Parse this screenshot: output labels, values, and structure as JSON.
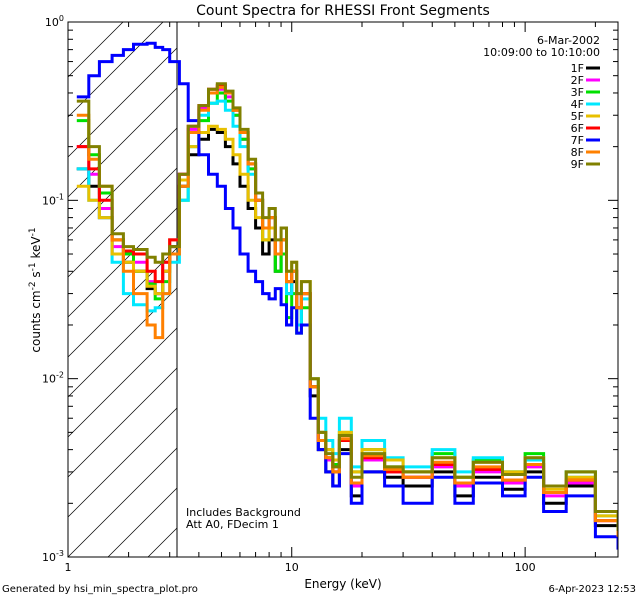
{
  "chart_data": {
    "type": "line",
    "title": "Count Spectra for RHESSI Front Segments",
    "xlabel": "Energy (keV)",
    "ylabel": "counts cm^-2 s^-1 keV^-1",
    "xscale": "log",
    "yscale": "log",
    "xlim": [
      1.1,
      250
    ],
    "ylim": [
      0.001,
      1.0
    ],
    "x_tick_labels": [
      "1",
      "10",
      "100"
    ],
    "y_tick_labels": [
      "10^-3",
      "10^-2",
      "10^-1",
      "10^0"
    ],
    "date": "6-Mar-2002",
    "time_range": "10:09:00 to 10:10:00",
    "annotations": [
      "Includes Background",
      "Att A0, FDecim 1"
    ],
    "shaded_region": {
      "x_max": 3.0,
      "label": "hatched low-energy region"
    },
    "series": [
      {
        "name": "1F",
        "color": "#000000",
        "x": [
          1.2,
          1.35,
          1.5,
          1.7,
          1.9,
          2.1,
          2.4,
          2.6,
          2.8,
          3.0,
          3.3,
          3.6,
          4.0,
          4.4,
          4.8,
          5.2,
          5.6,
          6.0,
          6.5,
          7.0,
          7.5,
          8.0,
          8.5,
          9.0,
          9.5,
          10,
          10.5,
          11,
          12,
          13,
          14,
          15,
          16,
          18,
          20,
          25,
          30,
          40,
          50,
          60,
          80,
          100,
          120,
          150,
          200,
          250
        ],
        "y": [
          0.15,
          0.12,
          0.08,
          0.05,
          0.045,
          0.04,
          0.032,
          0.03,
          0.04,
          0.055,
          0.12,
          0.18,
          0.22,
          0.25,
          0.24,
          0.2,
          0.16,
          0.12,
          0.09,
          0.07,
          0.05,
          0.06,
          0.04,
          0.05,
          0.03,
          0.035,
          0.02,
          0.03,
          0.008,
          0.004,
          0.003,
          0.0025,
          0.004,
          0.0022,
          0.003,
          0.0028,
          0.0025,
          0.003,
          0.0022,
          0.0028,
          0.0024,
          0.003,
          0.002,
          0.0025,
          0.0015,
          0.0012
        ]
      },
      {
        "name": "2F",
        "color": "#ff00ff",
        "x": [
          1.2,
          1.35,
          1.5,
          1.7,
          1.9,
          2.1,
          2.4,
          2.6,
          2.8,
          3.0,
          3.3,
          3.6,
          4.0,
          4.4,
          4.8,
          5.2,
          5.6,
          6.0,
          6.5,
          7.0,
          7.5,
          8.0,
          8.5,
          9.0,
          9.5,
          10,
          10.5,
          11,
          12,
          13,
          14,
          15,
          16,
          18,
          20,
          25,
          30,
          40,
          50,
          60,
          80,
          100,
          120,
          150,
          200,
          250
        ],
        "y": [
          0.2,
          0.14,
          0.09,
          0.055,
          0.05,
          0.045,
          0.035,
          0.03,
          0.045,
          0.06,
          0.14,
          0.25,
          0.33,
          0.4,
          0.42,
          0.38,
          0.3,
          0.22,
          0.15,
          0.1,
          0.07,
          0.08,
          0.05,
          0.06,
          0.035,
          0.04,
          0.025,
          0.03,
          0.009,
          0.0045,
          0.0035,
          0.003,
          0.0045,
          0.0025,
          0.0035,
          0.003,
          0.0028,
          0.0032,
          0.0025,
          0.003,
          0.0026,
          0.0032,
          0.0022,
          0.0026,
          0.0016,
          0.0013
        ]
      },
      {
        "name": "3F",
        "color": "#00e000",
        "x": [
          1.2,
          1.35,
          1.5,
          1.7,
          1.9,
          2.1,
          2.4,
          2.6,
          2.8,
          3.0,
          3.3,
          3.6,
          4.0,
          4.4,
          4.8,
          5.2,
          5.6,
          6.0,
          6.5,
          7.0,
          7.5,
          8.0,
          8.5,
          9.0,
          9.5,
          10,
          10.5,
          11,
          12,
          13,
          14,
          15,
          16,
          18,
          20,
          25,
          30,
          40,
          50,
          60,
          80,
          100,
          120,
          150,
          200,
          250
        ],
        "y": [
          0.28,
          0.18,
          0.11,
          0.06,
          0.05,
          0.04,
          0.034,
          0.028,
          0.035,
          0.05,
          0.1,
          0.2,
          0.28,
          0.35,
          0.4,
          0.36,
          0.3,
          0.22,
          0.15,
          0.1,
          0.06,
          0.07,
          0.04,
          0.05,
          0.022,
          0.03,
          0.018,
          0.025,
          0.009,
          0.005,
          0.004,
          0.0033,
          0.005,
          0.003,
          0.004,
          0.0032,
          0.003,
          0.0038,
          0.0028,
          0.0035,
          0.003,
          0.0038,
          0.0025,
          0.003,
          0.0018,
          0.0014
        ]
      },
      {
        "name": "4F",
        "color": "#00e8ff",
        "x": [
          1.2,
          1.35,
          1.5,
          1.7,
          1.9,
          2.1,
          2.4,
          2.6,
          2.8,
          3.0,
          3.3,
          3.6,
          4.0,
          4.4,
          4.8,
          5.2,
          5.6,
          6.0,
          6.5,
          7.0,
          7.5,
          8.0,
          8.5,
          9.0,
          9.5,
          10,
          10.5,
          11,
          12,
          13,
          14,
          15,
          16,
          18,
          20,
          25,
          30,
          40,
          50,
          60,
          80,
          100,
          120,
          150,
          200,
          250
        ],
        "y": [
          0.15,
          0.1,
          0.08,
          0.045,
          0.03,
          0.026,
          0.024,
          0.025,
          0.03,
          0.045,
          0.1,
          0.2,
          0.3,
          0.35,
          0.36,
          0.32,
          0.26,
          0.2,
          0.14,
          0.1,
          0.07,
          0.08,
          0.05,
          0.06,
          0.03,
          0.04,
          0.02,
          0.028,
          0.01,
          0.006,
          0.0045,
          0.0038,
          0.006,
          0.0032,
          0.0045,
          0.0036,
          0.0032,
          0.004,
          0.003,
          0.0036,
          0.003,
          0.0035,
          0.0025,
          0.0028,
          0.0017,
          0.0013
        ]
      },
      {
        "name": "5F",
        "color": "#e8c000",
        "x": [
          1.2,
          1.35,
          1.5,
          1.7,
          1.9,
          2.1,
          2.4,
          2.6,
          2.8,
          3.0,
          3.3,
          3.6,
          4.0,
          4.4,
          4.8,
          5.2,
          5.6,
          6.0,
          6.5,
          7.0,
          7.5,
          8.0,
          8.5,
          9.0,
          9.5,
          10,
          10.5,
          11,
          12,
          13,
          14,
          15,
          16,
          18,
          20,
          25,
          30,
          40,
          50,
          60,
          80,
          100,
          120,
          150,
          200,
          250
        ],
        "y": [
          0.12,
          0.1,
          0.08,
          0.05,
          0.045,
          0.04,
          0.033,
          0.03,
          0.04,
          0.06,
          0.13,
          0.2,
          0.24,
          0.26,
          0.25,
          0.22,
          0.18,
          0.14,
          0.1,
          0.08,
          0.06,
          0.07,
          0.05,
          0.06,
          0.04,
          0.045,
          0.03,
          0.035,
          0.01,
          0.005,
          0.004,
          0.0035,
          0.005,
          0.003,
          0.004,
          0.0035,
          0.003,
          0.0036,
          0.0028,
          0.0034,
          0.003,
          0.0036,
          0.0024,
          0.0028,
          0.0017,
          0.0013
        ]
      },
      {
        "name": "6F",
        "color": "#ff0000",
        "x": [
          1.2,
          1.35,
          1.5,
          1.7,
          1.9,
          2.1,
          2.4,
          2.6,
          2.8,
          3.0,
          3.3,
          3.6,
          4.0,
          4.4,
          4.8,
          5.2,
          5.6,
          6.0,
          6.5,
          7.0,
          7.5,
          8.0,
          8.5,
          9.0,
          9.5,
          10,
          10.5,
          11,
          12,
          13,
          14,
          15,
          16,
          18,
          20,
          25,
          30,
          40,
          50,
          60,
          80,
          100,
          120,
          150,
          200,
          250
        ],
        "y": [
          0.2,
          0.15,
          0.1,
          0.06,
          0.052,
          0.05,
          0.04,
          0.035,
          0.045,
          0.06,
          0.14,
          0.26,
          0.34,
          0.42,
          0.44,
          0.4,
          0.32,
          0.24,
          0.16,
          0.1,
          0.07,
          0.08,
          0.05,
          0.06,
          0.035,
          0.04,
          0.025,
          0.03,
          0.009,
          0.0045,
          0.0036,
          0.003,
          0.0045,
          0.0026,
          0.0036,
          0.003,
          0.0028,
          0.0033,
          0.0026,
          0.0031,
          0.0027,
          0.0033,
          0.0023,
          0.0027,
          0.0016,
          0.0013
        ]
      },
      {
        "name": "7F",
        "color": "#0000ff",
        "x": [
          1.2,
          1.35,
          1.5,
          1.7,
          1.9,
          2.1,
          2.4,
          2.6,
          2.8,
          3.0,
          3.3,
          3.6,
          4.0,
          4.4,
          4.8,
          5.2,
          5.6,
          6.0,
          6.5,
          7.0,
          7.5,
          8.0,
          8.5,
          9.0,
          9.5,
          10,
          10.5,
          11,
          12,
          13,
          14,
          15,
          16,
          18,
          20,
          25,
          30,
          40,
          50,
          60,
          80,
          100,
          120,
          150,
          200,
          250
        ],
        "y": [
          0.38,
          0.5,
          0.6,
          0.65,
          0.7,
          0.75,
          0.76,
          0.72,
          0.7,
          0.6,
          0.45,
          0.28,
          0.18,
          0.14,
          0.12,
          0.09,
          0.07,
          0.05,
          0.04,
          0.035,
          0.03,
          0.028,
          0.032,
          0.026,
          0.02,
          0.025,
          0.018,
          0.02,
          0.006,
          0.004,
          0.003,
          0.0025,
          0.0038,
          0.002,
          0.003,
          0.0025,
          0.002,
          0.0028,
          0.002,
          0.0026,
          0.0022,
          0.0028,
          0.0018,
          0.0022,
          0.0013,
          0.0011
        ]
      },
      {
        "name": "8F",
        "color": "#ff8000",
        "x": [
          1.2,
          1.35,
          1.5,
          1.7,
          1.9,
          2.1,
          2.4,
          2.6,
          2.8,
          3.0,
          3.3,
          3.6,
          4.0,
          4.4,
          4.8,
          5.2,
          5.6,
          6.0,
          6.5,
          7.0,
          7.5,
          8.0,
          8.5,
          9.0,
          9.5,
          10,
          10.5,
          11,
          12,
          13,
          14,
          15,
          16,
          18,
          20,
          25,
          30,
          40,
          50,
          60,
          80,
          100,
          120,
          150,
          200,
          250
        ],
        "y": [
          0.3,
          0.17,
          0.12,
          0.06,
          0.04,
          0.03,
          0.02,
          0.017,
          0.03,
          0.05,
          0.12,
          0.24,
          0.32,
          0.4,
          0.43,
          0.4,
          0.32,
          0.24,
          0.16,
          0.1,
          0.07,
          0.08,
          0.05,
          0.06,
          0.035,
          0.04,
          0.025,
          0.03,
          0.009,
          0.0045,
          0.0036,
          0.003,
          0.0046,
          0.0026,
          0.0037,
          0.0031,
          0.0028,
          0.0034,
          0.0026,
          0.0032,
          0.0027,
          0.0033,
          0.0023,
          0.0027,
          0.0016,
          0.0013
        ]
      },
      {
        "name": "9F",
        "color": "#808000",
        "x": [
          1.2,
          1.35,
          1.5,
          1.7,
          1.9,
          2.1,
          2.4,
          2.6,
          2.8,
          3.0,
          3.3,
          3.6,
          4.0,
          4.4,
          4.8,
          5.2,
          5.6,
          6.0,
          6.5,
          7.0,
          7.5,
          8.0,
          8.5,
          9.0,
          9.5,
          10,
          10.5,
          11,
          12,
          13,
          14,
          15,
          16,
          18,
          20,
          25,
          30,
          40,
          50,
          60,
          80,
          100,
          120,
          150,
          200,
          250
        ],
        "y": [
          0.36,
          0.2,
          0.12,
          0.065,
          0.055,
          0.053,
          0.048,
          0.045,
          0.05,
          0.055,
          0.14,
          0.26,
          0.34,
          0.42,
          0.45,
          0.41,
          0.33,
          0.25,
          0.17,
          0.11,
          0.08,
          0.09,
          0.06,
          0.07,
          0.04,
          0.045,
          0.03,
          0.035,
          0.01,
          0.005,
          0.0038,
          0.0032,
          0.0048,
          0.0028,
          0.0038,
          0.0032,
          0.003,
          0.0036,
          0.0028,
          0.0034,
          0.0029,
          0.0036,
          0.0025,
          0.003,
          0.0018,
          0.0014
        ]
      }
    ]
  },
  "footer": {
    "left": "Generated by hsi_min_spectra_plot.pro",
    "right": "6-Apr-2023 12:53"
  }
}
